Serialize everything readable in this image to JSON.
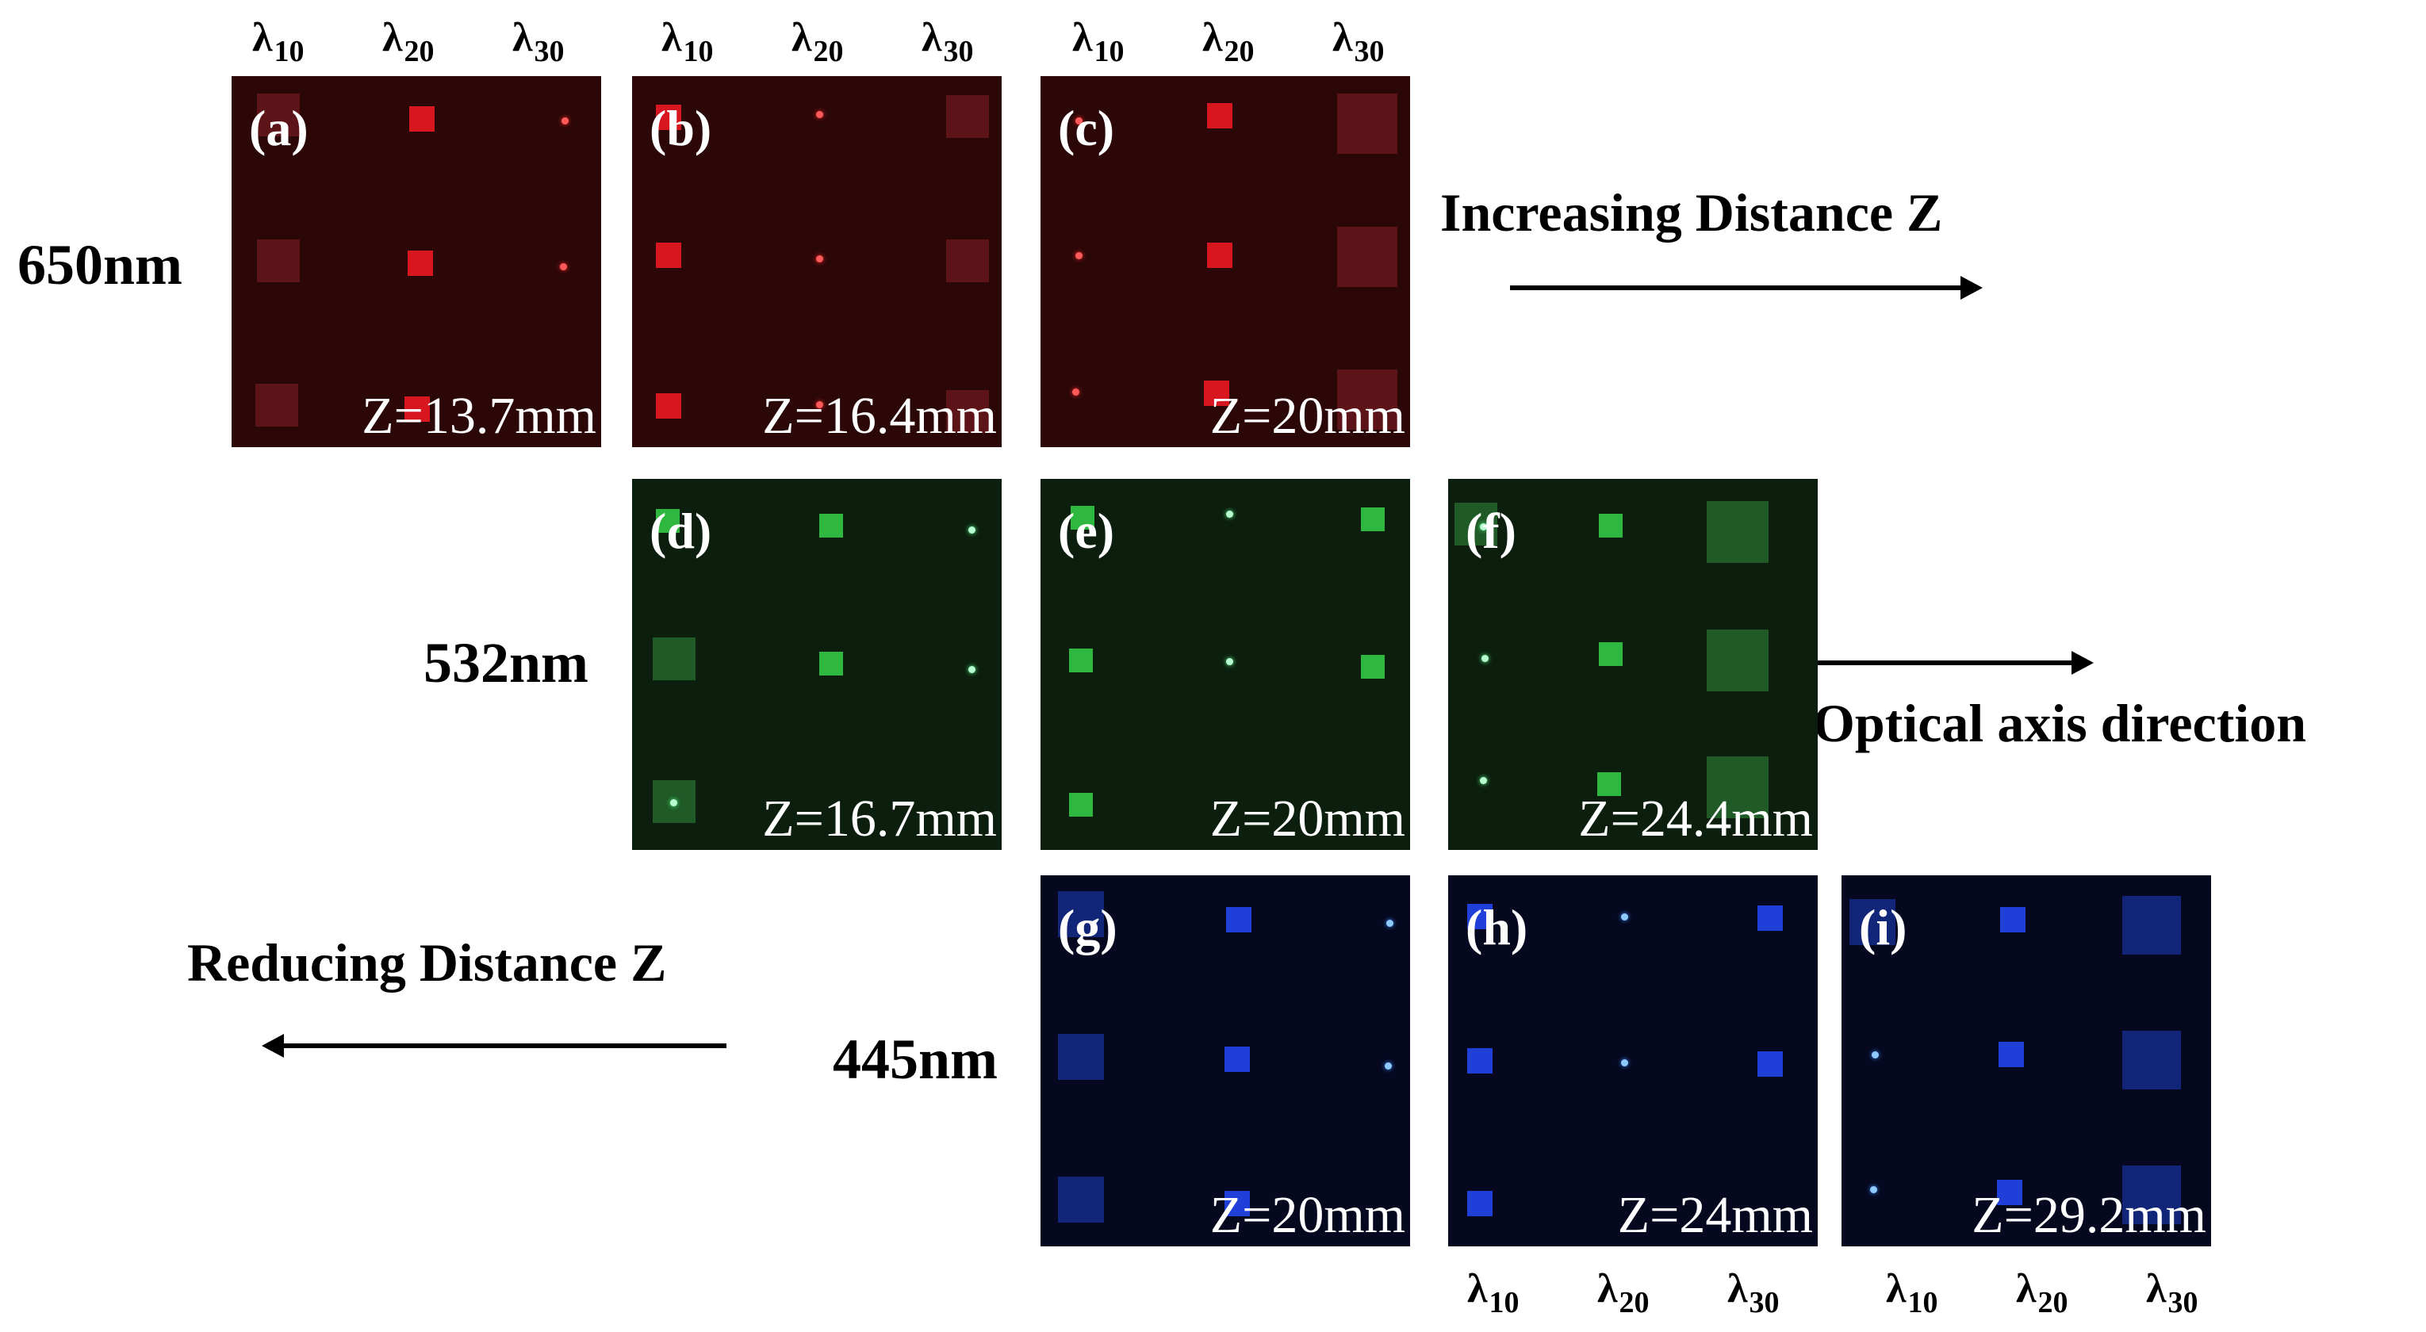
{
  "lambda_labels": {
    "symbol": "λ",
    "subscripts": [
      "10",
      "20",
      "30"
    ]
  },
  "wavelengths": [
    "650nm",
    "532nm",
    "445nm"
  ],
  "annotations": {
    "increasing": "Increasing Distance Z",
    "optical_axis": "Optical axis direction",
    "reducing": "Reducing Distance Z"
  },
  "panels": [
    {
      "label": "(a)",
      "z": "Z=13.7mm",
      "color": "#2c0708"
    },
    {
      "label": "(b)",
      "z": "Z=16.4mm",
      "color": "#2c0708"
    },
    {
      "label": "(c)",
      "z": "Z=20mm",
      "color": "#2c0708"
    },
    {
      "label": "(d)",
      "z": "Z=16.7mm",
      "color": "#0c1f0e"
    },
    {
      "label": "(e)",
      "z": "Z=20mm",
      "color": "#0c1f0e"
    },
    {
      "label": "(f)",
      "z": "Z=24.4mm",
      "color": "#0c1f0e"
    },
    {
      "label": "(g)",
      "z": "Z=20mm",
      "color": "#05081f"
    },
    {
      "label": "(h)",
      "z": "Z=24mm",
      "color": "#05081f"
    },
    {
      "label": "(i)",
      "z": "Z=29.2mm",
      "color": "#05081f"
    }
  ]
}
